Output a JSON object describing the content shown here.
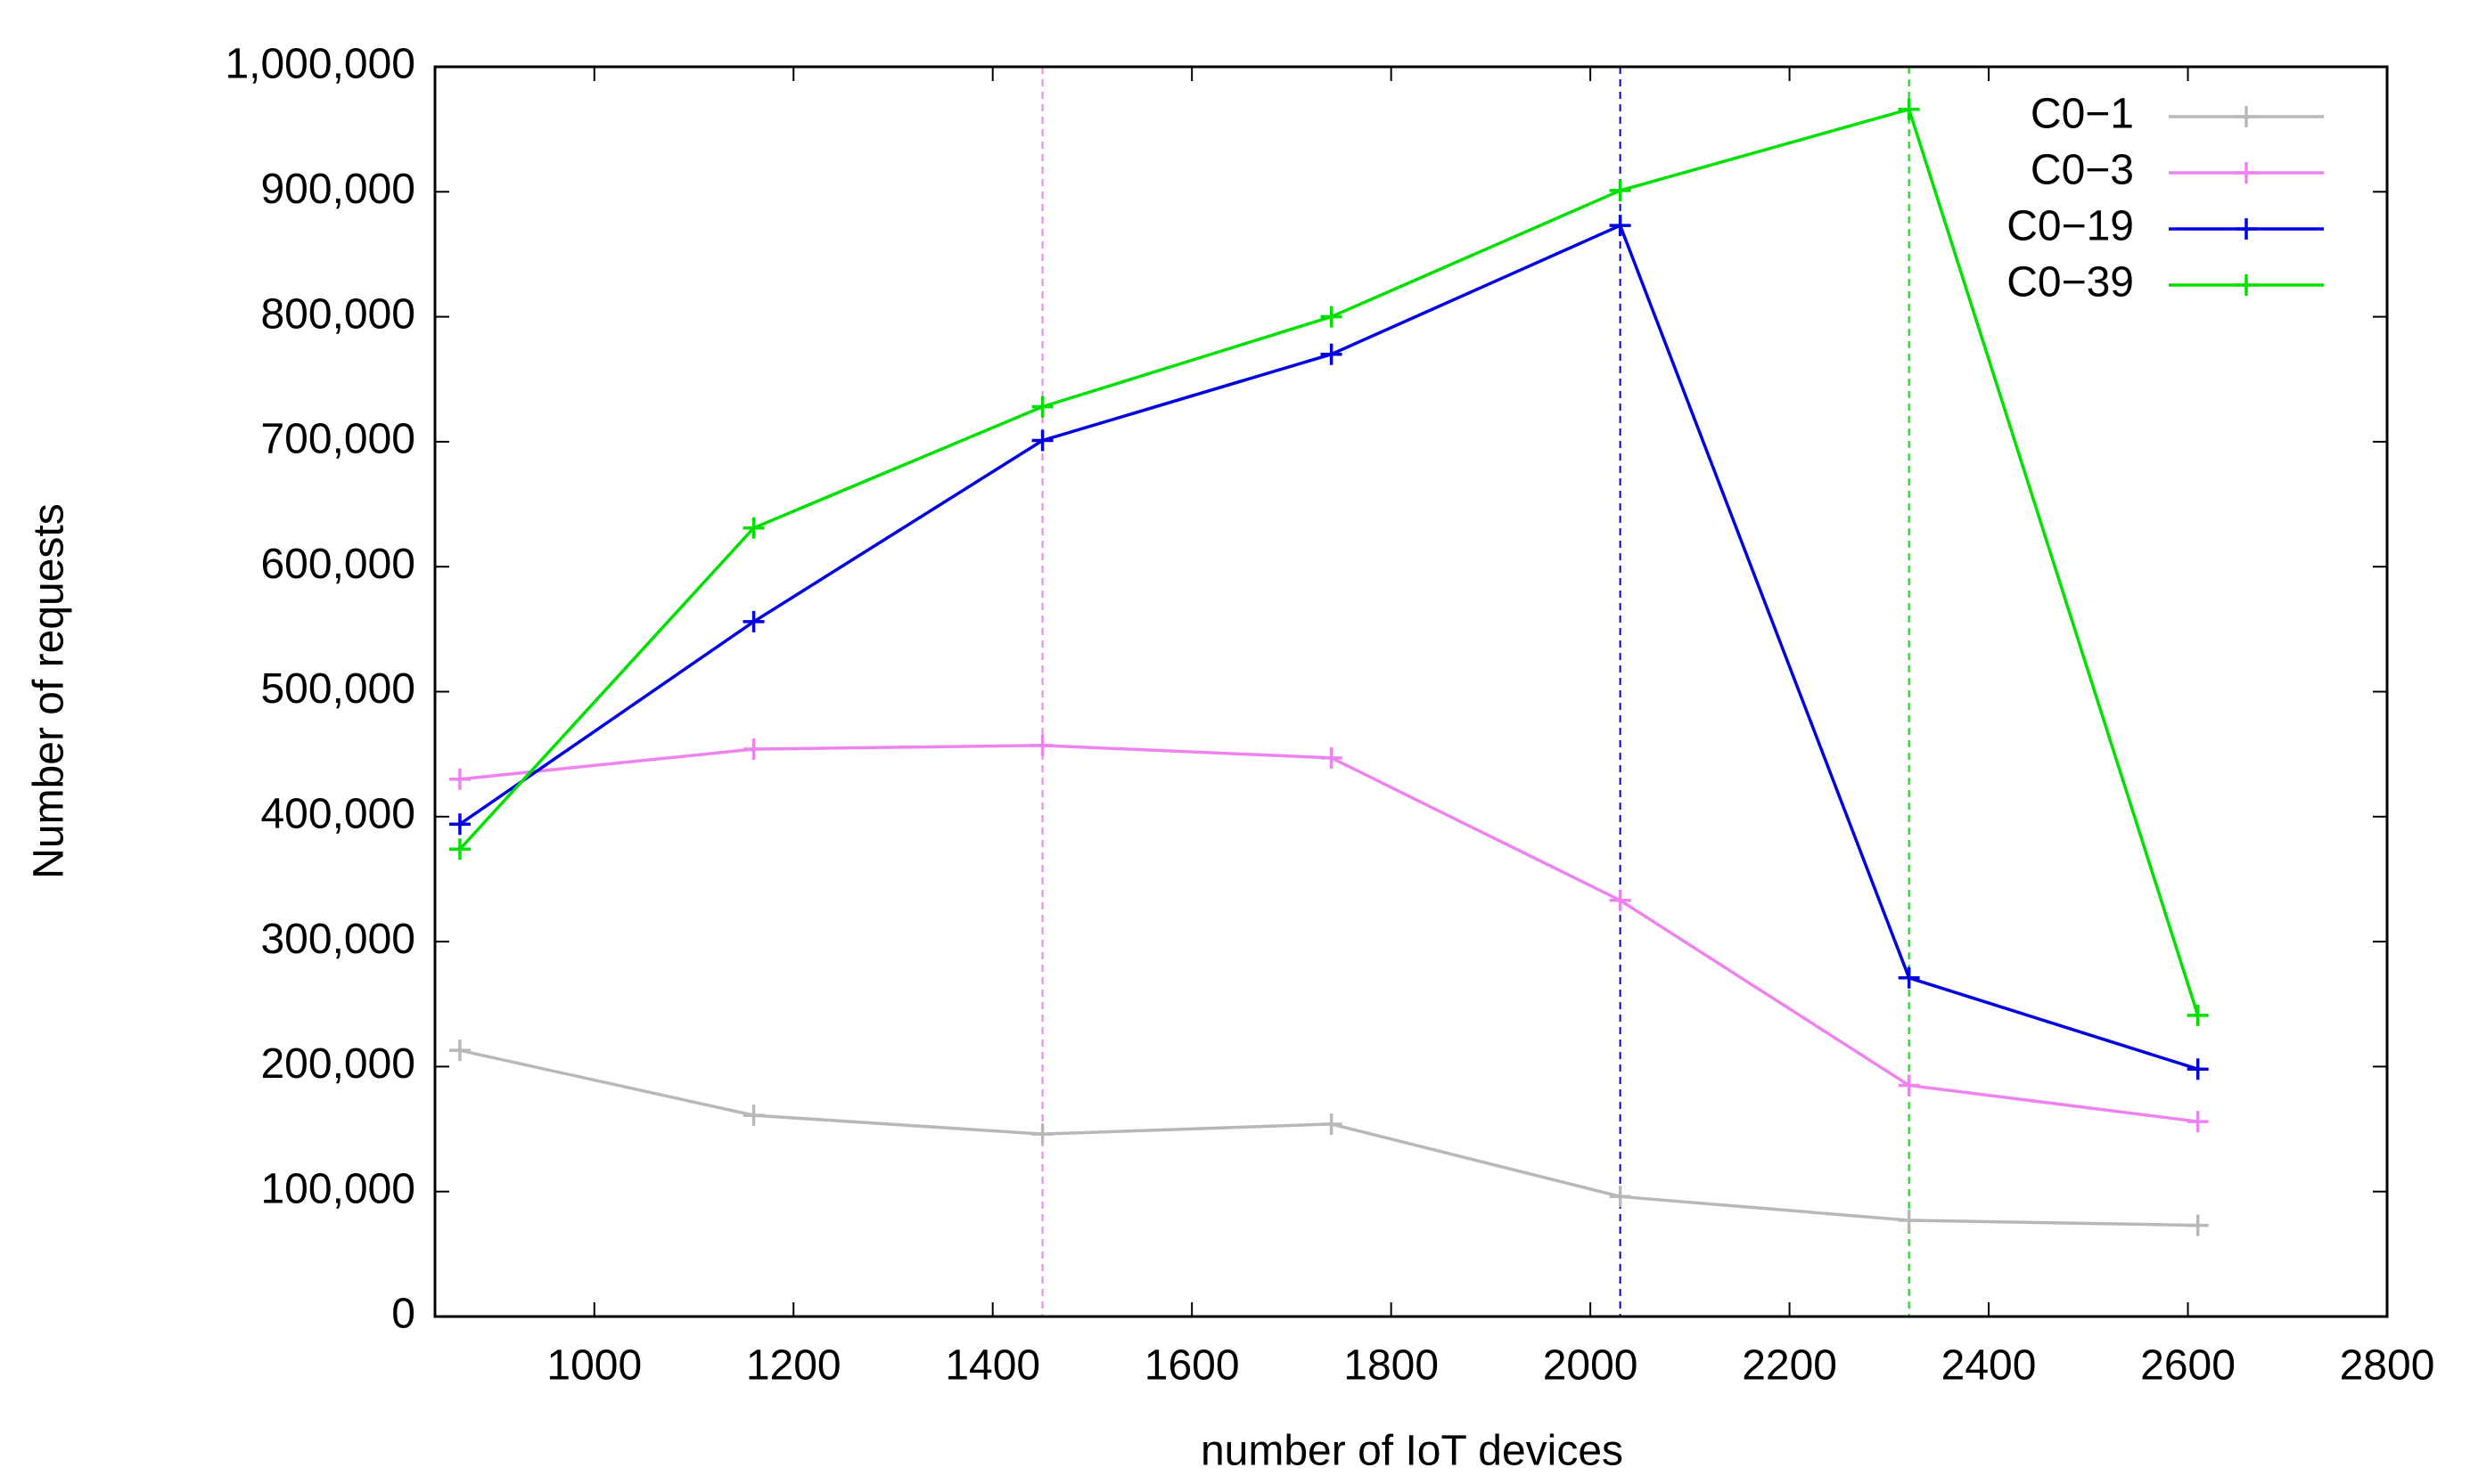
{
  "chart_data": {
    "type": "line",
    "x_label": "number of IoT devices",
    "y_label": "Number of requests",
    "x": [
      865,
      1160,
      1450,
      1740,
      2030,
      2320,
      2610
    ],
    "series": [
      {
        "name": "C0−1",
        "color": "#b8b8b8",
        "values": [
          213000,
          161000,
          146000,
          154000,
          96000,
          77000,
          73000
        ]
      },
      {
        "name": "C0−3",
        "color": "#ee82ee",
        "values": [
          430000,
          454000,
          457000,
          447000,
          333000,
          185000,
          156000
        ]
      },
      {
        "name": "C0−19",
        "color": "#0000e0",
        "values": [
          394000,
          556000,
          701000,
          770000,
          873000,
          271000,
          198000
        ]
      },
      {
        "name": "C0−39",
        "color": "#00e000",
        "values": [
          374000,
          631000,
          728000,
          800000,
          901000,
          966000,
          241000
        ]
      }
    ],
    "vertical_lines": [
      {
        "x": 1450,
        "color": "#ee82ee"
      },
      {
        "x": 2030,
        "color": "#0000e0"
      },
      {
        "x": 2320,
        "color": "#00e000"
      }
    ],
    "xlim": [
      840,
      2800
    ],
    "ylim": [
      0,
      1000000
    ],
    "xticks": [
      1000,
      1200,
      1400,
      1600,
      1800,
      2000,
      2200,
      2400,
      2600,
      2800
    ],
    "yticks": [
      0,
      {
        "value": 100000,
        "label": "100,000"
      },
      {
        "value": 200000,
        "label": "200,000"
      },
      {
        "value": 300000,
        "label": "300,000"
      },
      {
        "value": 400000,
        "label": "400,000"
      },
      {
        "value": 500000,
        "label": "500,000"
      },
      {
        "value": 600000,
        "label": "600,000"
      },
      {
        "value": 700000,
        "label": "700,000"
      },
      {
        "value": 800000,
        "label": "800,000"
      },
      {
        "value": 900000,
        "label": "900,000"
      },
      {
        "value": 1000000,
        "label": "1,000,000"
      }
    ],
    "legend": "top-right"
  }
}
